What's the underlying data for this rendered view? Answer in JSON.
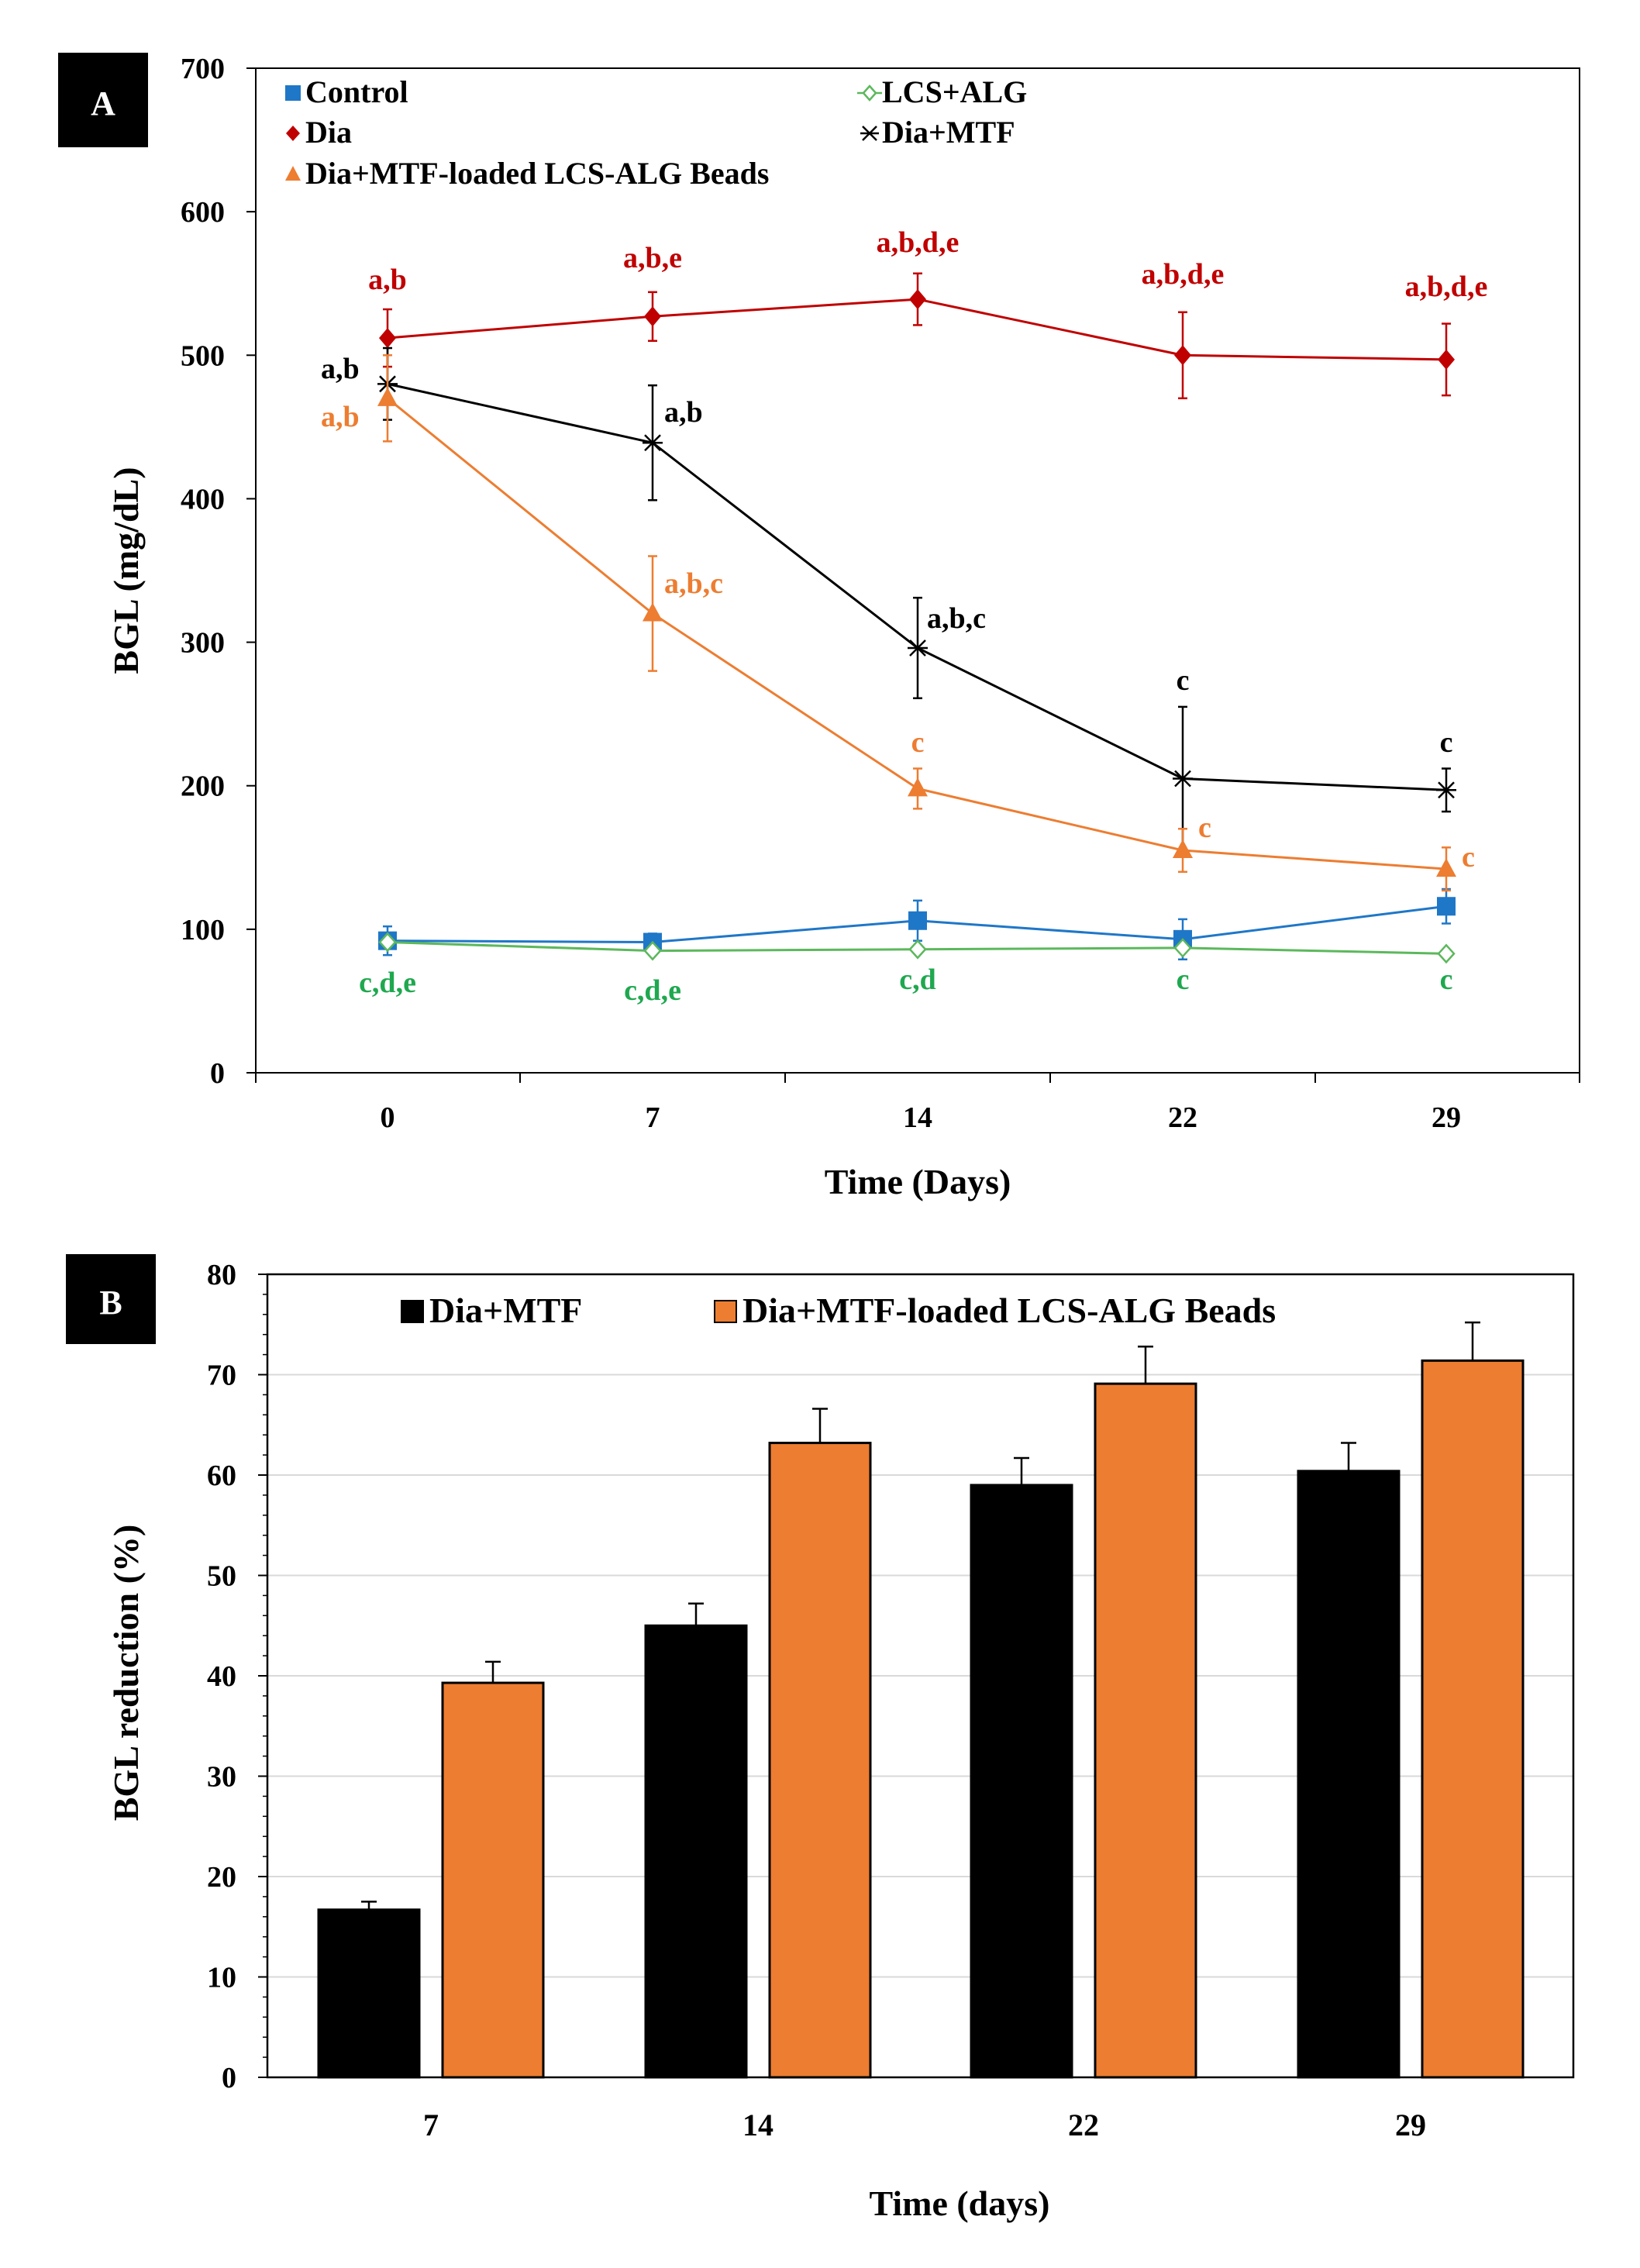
{
  "chart_data": [
    {
      "panel": "A",
      "type": "line",
      "xlabel": "Time (Days)",
      "ylabel": "BGL (mg/dL)",
      "ylim": [
        0,
        700
      ],
      "yticks": [
        0,
        100,
        200,
        300,
        400,
        500,
        600,
        700
      ],
      "x": [
        0,
        7,
        14,
        22,
        29
      ],
      "xtick_labels": [
        "0",
        "7",
        "14",
        "22",
        "29"
      ],
      "legend": [
        "Control",
        "LCS+ALG",
        "Dia",
        "Dia+MTF",
        "Dia+MTF-loaded LCS-ALG Beads"
      ],
      "series": [
        {
          "name": "Control",
          "color": "#1f77c8",
          "marker": "square",
          "values": [
            92,
            91,
            106,
            93,
            116
          ],
          "errors": [
            10,
            6,
            14,
            14,
            12
          ],
          "labels": [],
          "label_color": ""
        },
        {
          "name": "LCS+ALG",
          "color": "#5cb85c",
          "marker": "diamond-open",
          "values": [
            91,
            85,
            86,
            87,
            83
          ],
          "errors": [
            0,
            0,
            0,
            0,
            0
          ],
          "labels": [
            "c,d,e",
            "c,d,e",
            "c,d",
            "c",
            "c"
          ],
          "label_color": "#1fa84f"
        },
        {
          "name": "Dia",
          "color": "#c00000",
          "marker": "diamond",
          "values": [
            512,
            527,
            539,
            500,
            497
          ],
          "errors": [
            20,
            17,
            18,
            30,
            25
          ],
          "labels": [
            "a,b",
            "a,b,e",
            "a,b,d,e",
            "a,b,d,e",
            "a,b,d,e"
          ],
          "label_color": "#c00000"
        },
        {
          "name": "Dia+MTF",
          "color": "#000000",
          "marker": "star",
          "values": [
            480,
            439,
            296,
            205,
            197
          ],
          "errors": [
            25,
            40,
            35,
            50,
            15
          ],
          "labels": [
            "a,b",
            "a,b",
            "a,b,c",
            "c",
            "c"
          ],
          "label_color": "#000000"
        },
        {
          "name": "Dia+MTF-loaded LCS-ALG Beads",
          "color": "#ed7d31",
          "marker": "triangle",
          "values": [
            470,
            320,
            198,
            155,
            142
          ],
          "errors": [
            30,
            40,
            14,
            15,
            15
          ],
          "labels": [
            "a,b",
            "a,b,c",
            "c",
            "c",
            "c"
          ],
          "label_color": "#ed7d31"
        }
      ]
    },
    {
      "panel": "B",
      "type": "bar",
      "xlabel": "Time (days)",
      "ylabel": "BGL reduction (%)",
      "ylim": [
        0,
        80
      ],
      "yticks": [
        0,
        10,
        20,
        30,
        40,
        50,
        60,
        70,
        80
      ],
      "categories": [
        "7",
        "14",
        "22",
        "29"
      ],
      "legend": [
        "Dia+MTF",
        "Dia+MTF-loaded LCS-ALG Beads"
      ],
      "series": [
        {
          "name": "Dia+MTF",
          "color": "#000000",
          "values": [
            16.7,
            45.0,
            59.0,
            60.4
          ],
          "errors": [
            0.8,
            2.2,
            2.7,
            2.8
          ]
        },
        {
          "name": "Dia+MTF-loaded LCS-ALG Beads",
          "color": "#ed7d31",
          "values": [
            39.3,
            63.2,
            69.1,
            71.4
          ],
          "errors": [
            2.1,
            3.4,
            3.7,
            3.8
          ]
        }
      ]
    }
  ]
}
